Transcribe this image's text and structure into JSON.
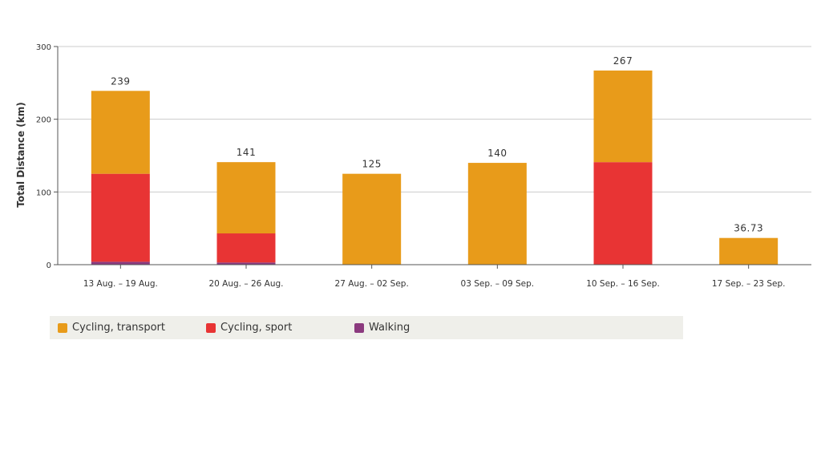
{
  "chart_data": {
    "type": "bar",
    "stacked": true,
    "ylabel": "Total Distance (km)",
    "ylim": [
      0,
      300
    ],
    "yticks": [
      0,
      100,
      200,
      300
    ],
    "grid": true,
    "categories": [
      "13 Aug. – 19 Aug.",
      "20 Aug. – 26 Aug.",
      "27 Aug. – 02 Sep.",
      "03 Sep. – 09 Sep.",
      "10 Sep. – 16 Sep.",
      "17 Sep. – 23 Sep."
    ],
    "totals": [
      "239",
      "141",
      "125",
      "140",
      "267",
      "36.73"
    ],
    "series": [
      {
        "name": "Walking",
        "color": "#8b3a7e",
        "values": [
          4,
          3,
          0,
          0,
          0,
          0
        ]
      },
      {
        "name": "Cycling, sport",
        "color": "#e83434",
        "values": [
          121,
          40,
          0,
          0,
          141,
          0
        ]
      },
      {
        "name": "Cycling, transport",
        "color": "#e89b1a",
        "values": [
          114,
          98,
          125,
          140,
          126,
          36.73
        ]
      }
    ],
    "legend": {
      "placement": "bottom",
      "items": [
        {
          "label": "Cycling, transport",
          "color": "#e89b1a"
        },
        {
          "label": "Cycling, sport",
          "color": "#e83434"
        },
        {
          "label": "Walking",
          "color": "#8b3a7e"
        }
      ]
    }
  }
}
